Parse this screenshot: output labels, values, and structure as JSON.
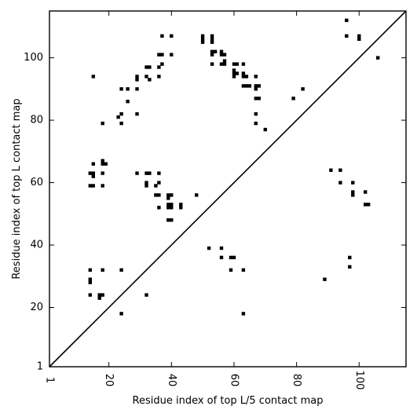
{
  "chart_data": {
    "type": "scatter",
    "xlabel": "Residue index of top L/5 contact map",
    "ylabel": "Residue index of top L contact map",
    "xlim": [
      1,
      115
    ],
    "ylim": [
      1,
      115
    ],
    "x_ticks": [
      1,
      20,
      40,
      60,
      80,
      100
    ],
    "y_ticks": [
      1,
      20,
      40,
      60,
      80,
      100
    ],
    "diagonal": true,
    "marker_color": "#000000",
    "upper_triangle_points": [
      [
        15,
        94
      ],
      [
        18,
        79
      ],
      [
        23,
        81
      ],
      [
        24,
        82
      ],
      [
        24,
        79
      ],
      [
        26,
        86
      ],
      [
        24,
        90
      ],
      [
        26,
        90
      ],
      [
        29,
        93
      ],
      [
        29,
        94
      ],
      [
        29,
        90
      ],
      [
        29,
        82
      ],
      [
        32,
        94
      ],
      [
        32,
        97
      ],
      [
        33,
        97
      ],
      [
        33,
        93
      ],
      [
        36,
        97
      ],
      [
        36,
        101
      ],
      [
        37,
        101
      ],
      [
        37,
        98
      ],
      [
        36,
        94
      ],
      [
        37,
        107
      ],
      [
        40,
        107
      ],
      [
        40,
        101
      ],
      [
        50,
        107
      ],
      [
        50,
        106
      ],
      [
        50,
        105
      ],
      [
        53,
        107
      ],
      [
        53,
        106
      ],
      [
        53,
        105
      ],
      [
        53,
        102
      ],
      [
        53,
        101
      ],
      [
        54,
        102
      ],
      [
        56,
        102
      ],
      [
        56,
        101
      ],
      [
        57,
        101
      ],
      [
        57,
        99
      ],
      [
        56,
        98
      ],
      [
        57,
        98
      ],
      [
        53,
        98
      ],
      [
        60,
        98
      ],
      [
        61,
        98
      ],
      [
        60,
        96
      ],
      [
        60,
        95
      ],
      [
        61,
        95
      ],
      [
        60,
        94
      ],
      [
        63,
        98
      ],
      [
        63,
        95
      ],
      [
        63,
        94
      ],
      [
        64,
        94
      ],
      [
        64,
        91
      ],
      [
        63,
        91
      ],
      [
        65,
        91
      ],
      [
        67,
        94
      ],
      [
        67,
        91
      ],
      [
        68,
        91
      ],
      [
        67,
        90
      ],
      [
        67,
        87
      ],
      [
        68,
        87
      ],
      [
        67,
        82
      ],
      [
        67,
        79
      ],
      [
        70,
        77
      ],
      [
        79,
        87
      ],
      [
        82,
        90
      ],
      [
        96,
        112
      ],
      [
        96,
        107
      ],
      [
        100,
        107
      ],
      [
        100,
        106
      ],
      [
        106,
        100
      ],
      [
        14,
        63
      ],
      [
        15,
        63
      ],
      [
        15,
        62
      ],
      [
        14,
        59
      ],
      [
        15,
        59
      ],
      [
        18,
        67
      ],
      [
        18,
        66
      ],
      [
        19,
        66
      ],
      [
        18,
        63
      ],
      [
        18,
        59
      ],
      [
        15,
        66
      ],
      [
        29,
        63
      ],
      [
        32,
        63
      ],
      [
        33,
        63
      ],
      [
        32,
        60
      ],
      [
        32,
        59
      ],
      [
        35,
        59
      ],
      [
        36,
        60
      ],
      [
        36,
        63
      ],
      [
        35,
        56
      ],
      [
        36,
        56
      ],
      [
        36,
        52
      ],
      [
        39,
        56
      ],
      [
        40,
        56
      ],
      [
        39,
        55
      ],
      [
        39,
        53
      ],
      [
        40,
        53
      ],
      [
        39,
        52
      ],
      [
        40,
        52
      ],
      [
        39,
        48
      ],
      [
        40,
        48
      ],
      [
        43,
        53
      ],
      [
        43,
        52
      ],
      [
        48,
        56
      ],
      [
        14,
        32
      ],
      [
        18,
        32
      ],
      [
        14,
        29
      ],
      [
        14,
        28
      ],
      [
        14,
        24
      ],
      [
        17,
        24
      ],
      [
        18,
        24
      ],
      [
        17,
        23
      ],
      [
        24,
        32
      ],
      [
        24,
        18
      ],
      [
        32,
        24
      ]
    ],
    "lower_triangle_points": [
      [
        52,
        39
      ],
      [
        56,
        39
      ],
      [
        56,
        36
      ],
      [
        59,
        36
      ],
      [
        60,
        36
      ],
      [
        59,
        32
      ],
      [
        63,
        32
      ],
      [
        63,
        18
      ],
      [
        89,
        29
      ],
      [
        91,
        64
      ],
      [
        94,
        64
      ],
      [
        94,
        60
      ],
      [
        97,
        36
      ],
      [
        97,
        33
      ],
      [
        98,
        60
      ],
      [
        98,
        57
      ],
      [
        98,
        56
      ],
      [
        102,
        57
      ],
      [
        102,
        53
      ],
      [
        103,
        53
      ]
    ]
  }
}
